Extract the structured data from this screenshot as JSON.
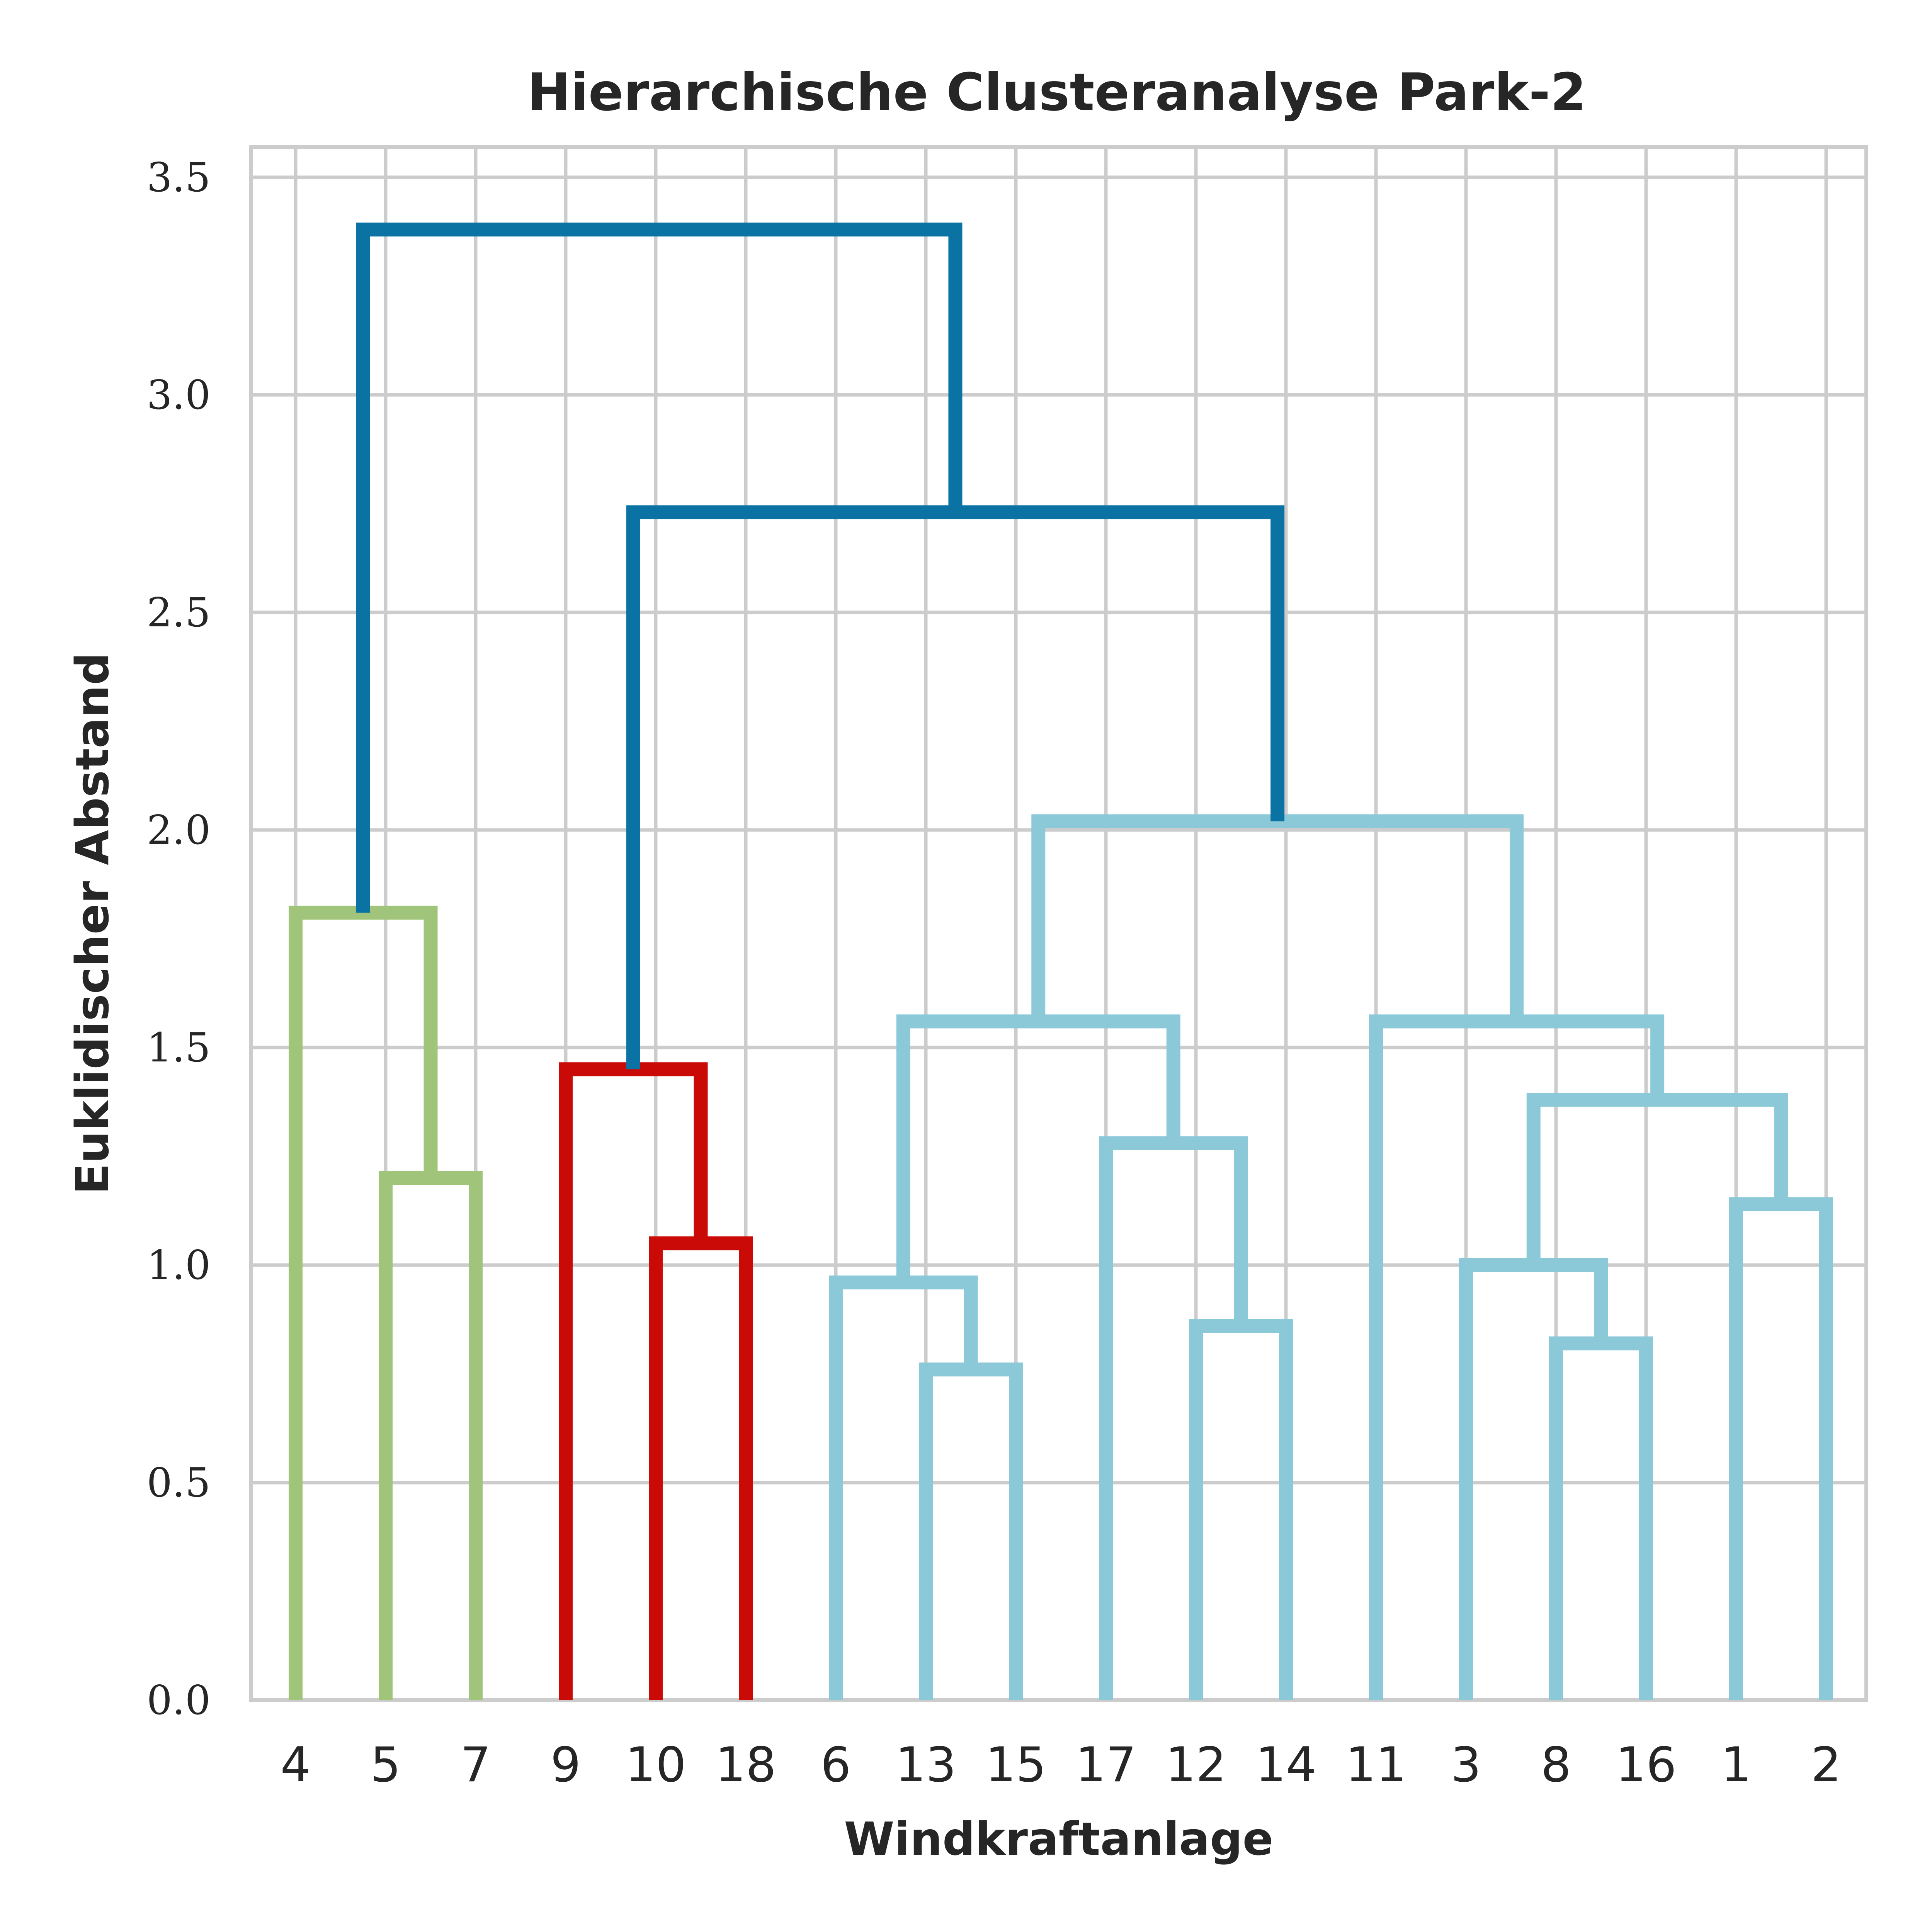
{
  "chart_data": {
    "type": "dendrogram",
    "title": "Hierarchische Clusteranalyse Park-2",
    "xlabel": "Windkraftanlage",
    "ylabel": "Euklidischer Abstand",
    "ylim": [
      0,
      3.57
    ],
    "yticks": [
      "0.0",
      "0.5",
      "1.0",
      "1.5",
      "2.0",
      "2.5",
      "3.0",
      "3.5"
    ],
    "ytick_values": [
      0,
      0.5,
      1.0,
      1.5,
      2.0,
      2.5,
      3.0,
      3.5
    ],
    "leaves": [
      "4",
      "5",
      "7",
      "9",
      "10",
      "18",
      "6",
      "13",
      "15",
      "17",
      "12",
      "14",
      "11",
      "3",
      "8",
      "16",
      "1",
      "2"
    ],
    "grid": true,
    "colors": {
      "green": "#a0c47a",
      "red": "#c90a06",
      "lightblue": "#8bc9d9",
      "darkblue": "#0a73a3"
    },
    "links": [
      {
        "left": "4",
        "right": "5,7",
        "height": 1.81,
        "color": "green"
      },
      {
        "left": "5",
        "right": "7",
        "height": 1.2,
        "color": "green"
      },
      {
        "left": "9",
        "right": "10,18",
        "height": 1.45,
        "color": "red"
      },
      {
        "left": "10",
        "right": "18",
        "height": 1.05,
        "color": "red"
      },
      {
        "left": "6",
        "right": "13,15",
        "height": 0.96,
        "color": "lightblue"
      },
      {
        "left": "13",
        "right": "15",
        "height": 0.76,
        "color": "lightblue"
      },
      {
        "left": "12",
        "right": "14",
        "height": 0.86,
        "color": "lightblue"
      },
      {
        "left": "17",
        "right": "12,14",
        "height": 1.28,
        "color": "lightblue"
      },
      {
        "left": "6,13,15",
        "right": "17,12,14",
        "height": 1.56,
        "color": "lightblue"
      },
      {
        "left": "8",
        "right": "16",
        "height": 0.82,
        "color": "lightblue"
      },
      {
        "left": "3",
        "right": "8,16",
        "height": 1.0,
        "color": "lightblue"
      },
      {
        "left": "1",
        "right": "2",
        "height": 1.14,
        "color": "lightblue"
      },
      {
        "left": "3,8,16",
        "right": "1,2",
        "height": 1.38,
        "color": "lightblue"
      },
      {
        "left": "11",
        "right": "3,8,16,1,2",
        "height": 1.56,
        "color": "lightblue"
      },
      {
        "left": "6..14",
        "right": "11..2",
        "height": 2.02,
        "color": "lightblue"
      },
      {
        "left": "9,10,18",
        "right": "6..2",
        "height": 2.73,
        "color": "darkblue"
      },
      {
        "left": "4,5,7",
        "right": "9..2",
        "height": 3.38,
        "color": "darkblue"
      }
    ]
  }
}
